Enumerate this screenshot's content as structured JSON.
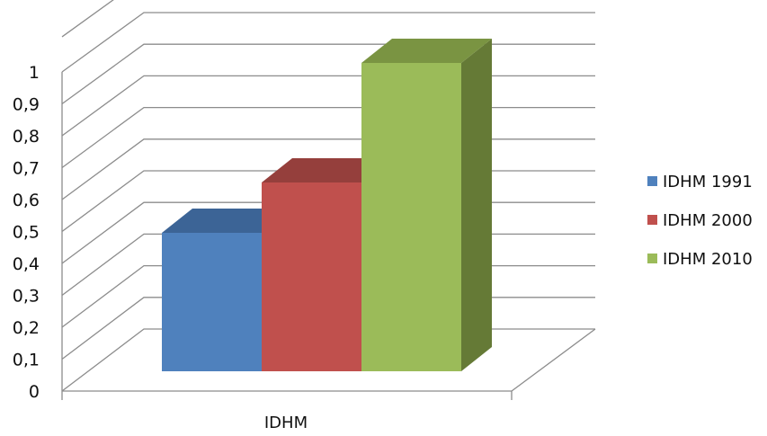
{
  "chart_data": {
    "type": "bar",
    "categories": [
      "IDHM"
    ],
    "series": [
      {
        "name": "IDHM 1991",
        "values": [
          0.44
        ],
        "color": "#4f81bd",
        "top_color": "#3c6496",
        "side_color": "#36587f"
      },
      {
        "name": "IDHM 2000",
        "values": [
          0.6
        ],
        "color": "#c0504d",
        "top_color": "#953f3c",
        "side_color": "#7f3533"
      },
      {
        "name": "IDHM 2010",
        "values": [
          0.98
        ],
        "color": "#9bbb59",
        "top_color": "#7a9442",
        "side_color": "#657a36"
      }
    ],
    "yticks": [
      "0",
      "0,1",
      "0,2",
      "0,3",
      "0,4",
      "0,5",
      "0,6",
      "0,7",
      "0,8",
      "0,9",
      "1"
    ],
    "ylim": [
      0,
      1
    ],
    "grid": true,
    "legend": "right",
    "gridline_color": "#8c8c8c"
  }
}
